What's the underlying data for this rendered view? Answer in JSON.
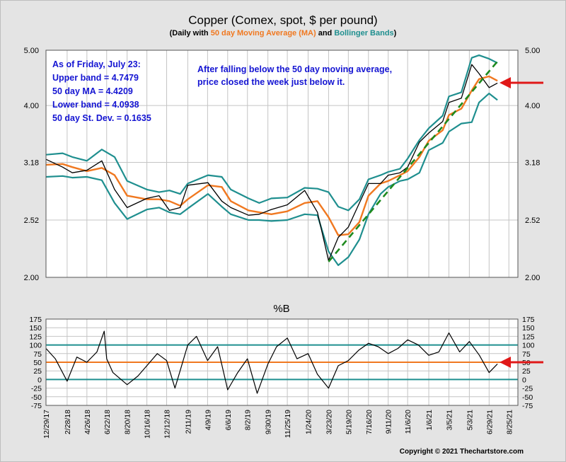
{
  "title": "Copper (Comex, spot, $ per pound)",
  "subtitle": {
    "pre": "(Daily with ",
    "ma": "50 day Moving Average (MA)",
    "mid": " and ",
    "bb": "Bollinger Bands",
    "post": ")"
  },
  "colors": {
    "price": "#000000",
    "ma": "#f07820",
    "bands": "#1f8f8f",
    "trend": "#1e8a1e",
    "annotation_text": "#1414d2",
    "arrow": "#e01818",
    "background": "#e4e4e4",
    "plot_bg": "#ffffff",
    "grid": "#c4c4c4"
  },
  "info_box": [
    "As of Friday, July 23:",
    "Upper band = 4.7479",
    "50 day MA = 4.4209",
    "Lower band = 4.0938",
    "50 day St. Dev. = 0.1635"
  ],
  "note": [
    "After falling below the 50 day moving average,",
    "price closed the week just below it."
  ],
  "footer": "Copyright © 2021 Thechartstore.com",
  "chart_data": [
    {
      "type": "line",
      "title": "Copper (Comex, spot, $ per pound)",
      "yscale": "log",
      "ylim": [
        2.0,
        5.0
      ],
      "yticks": [
        {
          "v": 2.0,
          "label": "2.00"
        },
        {
          "v": 2.52,
          "label": "2.52"
        },
        {
          "v": 3.18,
          "label": "3.18"
        },
        {
          "v": 4.0,
          "label": "4.00"
        },
        {
          "v": 5.0,
          "label": "5.00"
        }
      ],
      "grid": true,
      "x": [
        "2017-12-29",
        "2018-02-15",
        "2018-03-15",
        "2018-04-26",
        "2018-06-08",
        "2018-07-15",
        "2018-08-20",
        "2018-10-16",
        "2018-11-20",
        "2018-12-20",
        "2019-01-20",
        "2019-02-11",
        "2019-04-10",
        "2019-05-20",
        "2019-06-15",
        "2019-08-05",
        "2019-09-05",
        "2019-10-10",
        "2019-11-25",
        "2020-01-14",
        "2020-02-20",
        "2020-03-23",
        "2020-04-20",
        "2020-05-19",
        "2020-06-20",
        "2020-07-16",
        "2020-08-20",
        "2020-09-11",
        "2020-10-15",
        "2020-11-06",
        "2020-12-10",
        "2021-01-06",
        "2021-02-15",
        "2021-03-05",
        "2021-04-10",
        "2021-05-10",
        "2021-05-31",
        "2021-06-29",
        "2021-07-23"
      ],
      "series": [
        {
          "key": "price",
          "values": [
            3.22,
            3.12,
            3.05,
            3.08,
            3.2,
            2.85,
            2.65,
            2.75,
            2.78,
            2.62,
            2.65,
            2.9,
            2.93,
            2.72,
            2.65,
            2.57,
            2.58,
            2.63,
            2.68,
            2.84,
            2.6,
            2.14,
            2.35,
            2.45,
            2.7,
            2.92,
            2.92,
            3.02,
            3.05,
            3.12,
            3.45,
            3.58,
            3.75,
            4.05,
            4.12,
            4.72,
            4.55,
            4.3,
            4.38
          ]
        },
        {
          "key": "ma",
          "values": [
            3.15,
            3.16,
            3.12,
            3.07,
            3.11,
            3.02,
            2.78,
            2.74,
            2.74,
            2.72,
            2.67,
            2.74,
            2.9,
            2.88,
            2.72,
            2.62,
            2.6,
            2.58,
            2.61,
            2.7,
            2.72,
            2.55,
            2.37,
            2.38,
            2.5,
            2.78,
            2.92,
            2.95,
            3.02,
            3.07,
            3.25,
            3.47,
            3.62,
            3.85,
            3.95,
            4.25,
            4.45,
            4.5,
            4.42
          ]
        },
        {
          "name": "Bollinger Bands",
          "key": "upper",
          "values": [
            3.28,
            3.3,
            3.25,
            3.2,
            3.35,
            3.25,
            2.95,
            2.85,
            2.82,
            2.84,
            2.8,
            2.92,
            3.02,
            3.0,
            2.85,
            2.75,
            2.7,
            2.75,
            2.76,
            2.87,
            2.86,
            2.82,
            2.66,
            2.62,
            2.74,
            2.97,
            3.02,
            3.06,
            3.1,
            3.23,
            3.48,
            3.65,
            3.84,
            4.15,
            4.22,
            4.85,
            4.9,
            4.83,
            4.75
          ]
        },
        {
          "key": "lower",
          "values": [
            3.0,
            3.01,
            2.99,
            3.0,
            2.96,
            2.7,
            2.53,
            2.63,
            2.65,
            2.6,
            2.58,
            2.64,
            2.8,
            2.66,
            2.58,
            2.52,
            2.52,
            2.51,
            2.52,
            2.58,
            2.57,
            2.22,
            2.1,
            2.17,
            2.33,
            2.58,
            2.8,
            2.88,
            2.95,
            2.97,
            3.05,
            3.34,
            3.44,
            3.6,
            3.72,
            3.74,
            4.05,
            4.2,
            4.09
          ]
        },
        {
          "key": "trend",
          "dashed": true,
          "x": [
            "2020-03-23",
            "2021-07-23"
          ],
          "values": [
            2.13,
            4.78
          ]
        }
      ]
    },
    {
      "type": "line",
      "title": "%B",
      "ylim": [
        -75,
        175
      ],
      "yticks": [
        -75,
        -50,
        -25,
        0,
        25,
        50,
        75,
        100,
        125,
        150,
        175
      ],
      "ytick_labels": [
        "-75",
        "-50",
        "-25",
        "0",
        "25",
        "50",
        "75",
        "100",
        "125",
        "150",
        "175"
      ],
      "reference_lines": [
        0,
        50,
        100
      ],
      "xticks": [
        "2017-12-29",
        "2018-02-28",
        "2018-04-26",
        "2018-06-22",
        "2018-08-20",
        "2018-10-16",
        "2018-12-12",
        "2019-02-11",
        "2019-04-09",
        "2019-06-06",
        "2019-08-02",
        "2019-09-30",
        "2019-11-25",
        "2020-01-24",
        "2020-03-23",
        "2020-05-19",
        "2020-07-16",
        "2020-09-11",
        "2020-11-06",
        "2021-01-06",
        "2021-03-05",
        "2021-05-03",
        "2021-06-29",
        "2021-08-25"
      ],
      "xtick_labels": [
        "12/29/17",
        "2/28/18",
        "4/26/18",
        "6/22/18",
        "8/20/18",
        "10/16/18",
        "12/12/18",
        "2/11/19",
        "4/9/19",
        "6/6/19",
        "8/2/19",
        "9/30/19",
        "11/25/19",
        "1/24/20",
        "3/23/20",
        "5/19/20",
        "7/16/20",
        "9/11/20",
        "11/6/20",
        "1/6/21",
        "3/5/21",
        "5/3/21",
        "6/29/21",
        "8/25/21"
      ],
      "grid": true,
      "x": [
        "2017-12-29",
        "2018-01-25",
        "2018-02-28",
        "2018-03-28",
        "2018-04-26",
        "2018-05-25",
        "2018-06-15",
        "2018-06-22",
        "2018-07-10",
        "2018-08-20",
        "2018-09-20",
        "2018-10-16",
        "2018-11-15",
        "2018-12-12",
        "2019-01-05",
        "2019-02-11",
        "2019-03-08",
        "2019-04-09",
        "2019-05-08",
        "2019-06-06",
        "2019-07-05",
        "2019-08-02",
        "2019-08-30",
        "2019-09-30",
        "2019-10-25",
        "2019-11-25",
        "2019-12-23",
        "2020-01-24",
        "2020-02-20",
        "2020-03-23",
        "2020-04-20",
        "2020-05-19",
        "2020-06-18",
        "2020-07-16",
        "2020-08-13",
        "2020-09-11",
        "2020-10-09",
        "2020-11-06",
        "2020-12-07",
        "2021-01-06",
        "2021-02-04",
        "2021-03-05",
        "2021-04-05",
        "2021-05-03",
        "2021-06-01",
        "2021-06-29",
        "2021-07-23"
      ],
      "series": [
        {
          "key": "pctb",
          "values": [
            90,
            60,
            -5,
            65,
            50,
            80,
            140,
            60,
            20,
            -15,
            10,
            40,
            75,
            55,
            -25,
            100,
            125,
            55,
            95,
            -30,
            20,
            60,
            -40,
            45,
            95,
            120,
            60,
            75,
            15,
            -25,
            40,
            55,
            85,
            105,
            95,
            75,
            90,
            115,
            100,
            70,
            80,
            135,
            80,
            110,
            70,
            20,
            45
          ]
        }
      ]
    }
  ]
}
